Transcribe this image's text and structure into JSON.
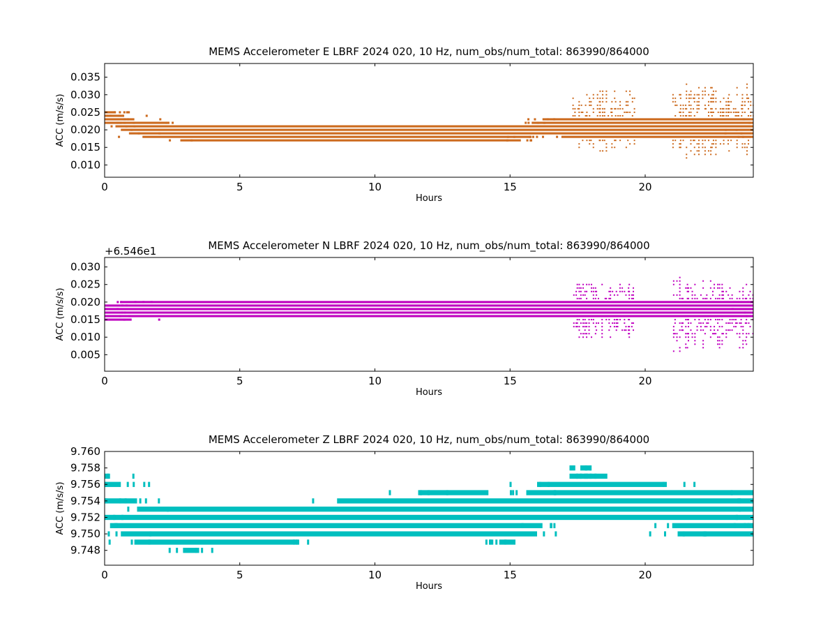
{
  "chart_data": [
    {
      "type": "scatter",
      "title": "MEMS Accelerometer E LBRF 2024 020, 10 Hz, num_obs/num_total: 863990/864000",
      "xlabel": "Hours",
      "ylabel": "ACC (m/s/s)",
      "xlim": [
        0,
        24
      ],
      "ylim": [
        0.0065,
        0.0389
      ],
      "x_ticks": [
        0,
        5,
        10,
        15,
        20
      ],
      "x_tick_labels": [
        "0",
        "5",
        "10",
        "15",
        "20"
      ],
      "y_ticks": [
        0.01,
        0.015,
        0.02,
        0.025,
        0.03,
        0.035
      ],
      "y_tick_labels": [
        "0.010",
        "0.015",
        "0.020",
        "0.025",
        "0.030",
        "0.035"
      ],
      "y_offset_label": "",
      "color": "#cc6a1e",
      "grid": false,
      "band_spacing": 0.001,
      "bands": [
        {
          "y": 0.025,
          "x_start": 0.0,
          "x_end": 0.4
        },
        {
          "y": 0.024,
          "x_start": 0.0,
          "x_end": 0.7
        },
        {
          "y": 0.023,
          "x_start": 0.0,
          "x_end": 1.1
        },
        {
          "y": 0.022,
          "x_start": 0.0,
          "x_end": 2.4
        },
        {
          "y": 0.022,
          "x_start": 15.8,
          "x_end": 24.0
        },
        {
          "y": 0.021,
          "x_start": 0.4,
          "x_end": 24.0
        },
        {
          "y": 0.02,
          "x_start": 0.6,
          "x_end": 24.0
        },
        {
          "y": 0.019,
          "x_start": 0.9,
          "x_end": 24.0
        },
        {
          "y": 0.018,
          "x_start": 1.4,
          "x_end": 15.8
        },
        {
          "y": 0.018,
          "x_start": 16.9,
          "x_end": 24.0
        },
        {
          "y": 0.017,
          "x_start": 2.8,
          "x_end": 15.4
        },
        {
          "y": 0.023,
          "x_start": 16.2,
          "x_end": 24.0
        }
      ],
      "spike_regions": [
        {
          "x_start": 17.3,
          "x_end": 19.6,
          "y_low": 0.013,
          "y_high": 0.032
        },
        {
          "x_start": 21.0,
          "x_end": 24.0,
          "y_low": 0.011,
          "y_high": 0.034
        }
      ]
    },
    {
      "type": "scatter",
      "title": "MEMS Accelerometer N LBRF 2024 020, 10 Hz, num_obs/num_total: 863990/864000",
      "xlabel": "Hours",
      "ylabel": "ACC (m/s/s)",
      "xlim": [
        0,
        24
      ],
      "ylim": [
        0.0003,
        0.0327
      ],
      "x_ticks": [
        0,
        5,
        10,
        15,
        20
      ],
      "x_tick_labels": [
        "0",
        "5",
        "10",
        "15",
        "20"
      ],
      "y_ticks": [
        0.005,
        0.01,
        0.015,
        0.02,
        0.025,
        0.03
      ],
      "y_tick_labels": [
        "0.005",
        "0.010",
        "0.015",
        "0.020",
        "0.025",
        "0.030"
      ],
      "y_offset_label": "+6.546e1",
      "color": "#bf00bf",
      "grid": false,
      "band_spacing": 0.001,
      "bands": [
        {
          "y": 0.02,
          "x_start": 0.6,
          "x_end": 24.0
        },
        {
          "y": 0.019,
          "x_start": 0.0,
          "x_end": 24.0
        },
        {
          "y": 0.018,
          "x_start": 0.0,
          "x_end": 24.0
        },
        {
          "y": 0.017,
          "x_start": 0.0,
          "x_end": 24.0
        },
        {
          "y": 0.016,
          "x_start": 0.0,
          "x_end": 24.0
        },
        {
          "y": 0.015,
          "x_start": 0.0,
          "x_end": 1.0
        }
      ],
      "spike_regions": [
        {
          "x_start": 17.3,
          "x_end": 19.6,
          "y_low": 0.009,
          "y_high": 0.026
        },
        {
          "x_start": 21.0,
          "x_end": 24.0,
          "y_low": 0.005,
          "y_high": 0.028
        }
      ]
    },
    {
      "type": "scatter",
      "title": "MEMS Accelerometer Z LBRF 2024 020, 10 Hz, num_obs/num_total: 863990/864000",
      "xlabel": "Hours",
      "ylabel": "ACC (m/s/s)",
      "xlim": [
        0,
        24
      ],
      "ylim": [
        9.7462,
        9.76
      ],
      "x_ticks": [
        0,
        5,
        10,
        15,
        20
      ],
      "x_tick_labels": [
        "0",
        "5",
        "10",
        "15",
        "20"
      ],
      "y_ticks": [
        9.748,
        9.75,
        9.752,
        9.754,
        9.756,
        9.758,
        9.76
      ],
      "y_tick_labels": [
        "9.748",
        "9.750",
        "9.752",
        "9.754",
        "9.756",
        "9.758",
        "9.760"
      ],
      "y_offset_label": "",
      "color": "#00bfbf",
      "grid": false,
      "band_spacing": 0.001,
      "bands": [
        {
          "y": 9.758,
          "x_start": 17.6,
          "x_end": 18.0
        },
        {
          "y": 9.757,
          "x_start": 0.0,
          "x_end": 0.2
        },
        {
          "y": 9.757,
          "x_start": 17.2,
          "x_end": 18.6
        },
        {
          "y": 9.756,
          "x_start": 0.0,
          "x_end": 0.6
        },
        {
          "y": 9.756,
          "x_start": 16.0,
          "x_end": 20.8
        },
        {
          "y": 9.755,
          "x_start": 11.6,
          "x_end": 14.2
        },
        {
          "y": 9.755,
          "x_start": 15.6,
          "x_end": 24.0
        },
        {
          "y": 9.754,
          "x_start": 0.0,
          "x_end": 1.2
        },
        {
          "y": 9.754,
          "x_start": 8.6,
          "x_end": 24.0
        },
        {
          "y": 9.753,
          "x_start": 1.2,
          "x_end": 24.0
        },
        {
          "y": 9.752,
          "x_start": 0.0,
          "x_end": 24.0
        },
        {
          "y": 9.751,
          "x_start": 0.2,
          "x_end": 16.2
        },
        {
          "y": 9.751,
          "x_start": 21.0,
          "x_end": 24.0
        },
        {
          "y": 9.75,
          "x_start": 0.6,
          "x_end": 16.0
        },
        {
          "y": 9.75,
          "x_start": 21.2,
          "x_end": 24.0
        },
        {
          "y": 9.749,
          "x_start": 1.1,
          "x_end": 7.2
        },
        {
          "y": 9.749,
          "x_start": 14.6,
          "x_end": 15.2
        },
        {
          "y": 9.748,
          "x_start": 2.9,
          "x_end": 3.4
        }
      ],
      "spike_regions": []
    }
  ]
}
